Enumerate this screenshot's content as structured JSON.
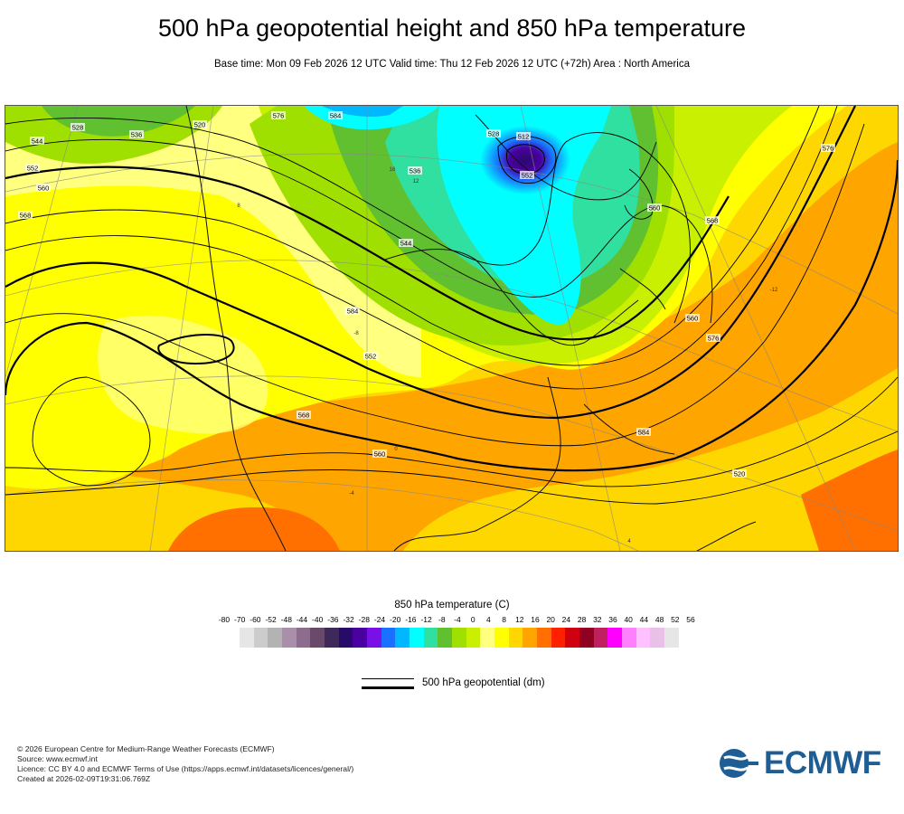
{
  "title": "500 hPa geopotential height and 850 hPa temperature",
  "subtitle": "Base time: Mon 09 Feb 2026 12 UTC Valid time: Thu 12 Feb 2026 12 UTC (+72h) Area : North America",
  "map": {
    "contour_labels": [
      "520",
      "528",
      "536",
      "544",
      "552",
      "560",
      "568",
      "576",
      "584",
      "536",
      "544",
      "552",
      "560",
      "568",
      "576",
      "584",
      "552",
      "560",
      "576",
      "568",
      "560",
      "584",
      "520",
      "512",
      "528"
    ],
    "temperature_labels": [
      "-12",
      "-8",
      "-4",
      "0",
      "4",
      "8",
      "12",
      "16"
    ]
  },
  "colorbar": {
    "title": "850 hPa temperature (C)",
    "ticks": [
      "-80",
      "-70",
      "-60",
      "-52",
      "-48",
      "-44",
      "-40",
      "-36",
      "-32",
      "-28",
      "-24",
      "-20",
      "-16",
      "-12",
      "-8",
      "-4",
      "0",
      "4",
      "8",
      "12",
      "16",
      "20",
      "24",
      "28",
      "32",
      "36",
      "40",
      "44",
      "48",
      "52",
      "56"
    ],
    "colors": [
      "#e6e6e6",
      "#cccccc",
      "#b3b3b3",
      "#a98fa9",
      "#8d6c8d",
      "#6a4a6a",
      "#3e2a5a",
      "#280a6a",
      "#4b00a0",
      "#7a10e8",
      "#1a70ff",
      "#00b8ff",
      "#00ffff",
      "#30e0a0",
      "#60c030",
      "#a0e000",
      "#c8f000",
      "#ffff80",
      "#ffff00",
      "#ffd700",
      "#ffa500",
      "#ff7000",
      "#ff2000",
      "#d00010",
      "#900020",
      "#c02060",
      "#ff00ff",
      "#ff80ff",
      "#ffc0ff",
      "#e8c0e8",
      "#e6e6e6"
    ]
  },
  "legend": {
    "label": "500 hPa geopotential (dm)"
  },
  "footer": {
    "line1": "© 2026 European Centre for Medium-Range Weather Forecasts (ECMWF)",
    "line2": "Source: www.ecmwf.int",
    "line3": "Licence: CC BY 4.0 and ECMWF Terms of Use (https://apps.ecmwf.int/datasets/licences/general/)",
    "line4": "Created at 2026-02-09T19:31:06.769Z"
  },
  "logo": {
    "text": "ECMWF",
    "color": "#1f5d95"
  }
}
